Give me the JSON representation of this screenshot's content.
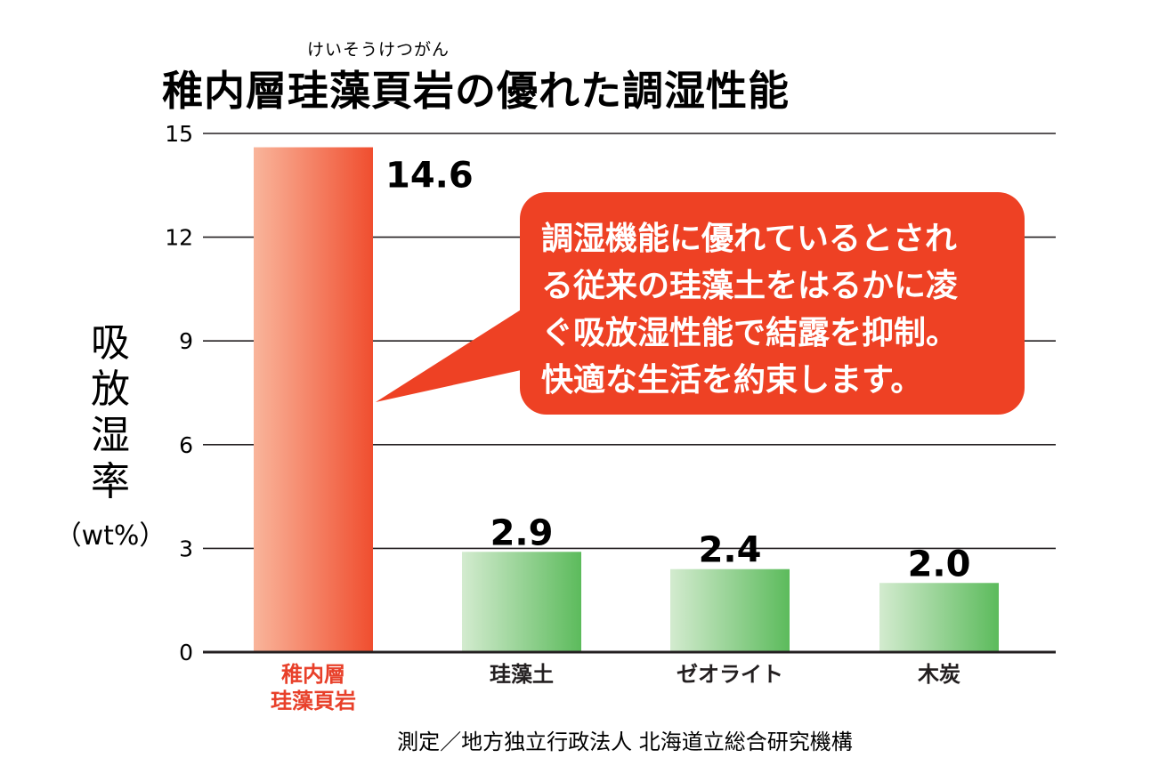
{
  "chart_data": {
    "type": "bar",
    "title_ruby": "けいそうけつがん",
    "title": "稚内層珪藻頁岩の優れた調湿性能",
    "ylabel_chars": [
      "吸",
      "放",
      "湿",
      "率"
    ],
    "ylabel_unit": "（wt%）",
    "categories": [
      [
        "稚内層",
        "珪藻頁岩"
      ],
      [
        "珪藻土"
      ],
      [
        "ゼオライト"
      ],
      [
        "木炭"
      ]
    ],
    "values": [
      14.6,
      2.9,
      2.4,
      2.0
    ],
    "value_labels": [
      "14.6",
      "2.9",
      "2.4",
      "2.0"
    ],
    "yticks": [
      "0",
      "3",
      "6",
      "9",
      "12",
      "15"
    ],
    "ylim": [
      0,
      15
    ],
    "grid": true,
    "callout": [
      "調湿機能に優れているとされ",
      "る従来の珪藻土をはるかに凌",
      "ぐ吸放湿性能で結露を抑制。",
      "快適な生活を約束します。"
    ],
    "source": "測定／地方独立行政法人 北海道立総合研究機構"
  },
  "colors": {
    "highlight_bar": "#f04e2f",
    "highlight_bar_light": "#f9b59b",
    "other_bar": "#5cbb5c",
    "other_bar_light": "#d3ebcf",
    "callout_fill": "#ee4124",
    "highlight_label": "#e8402a",
    "text": "#231f20"
  }
}
